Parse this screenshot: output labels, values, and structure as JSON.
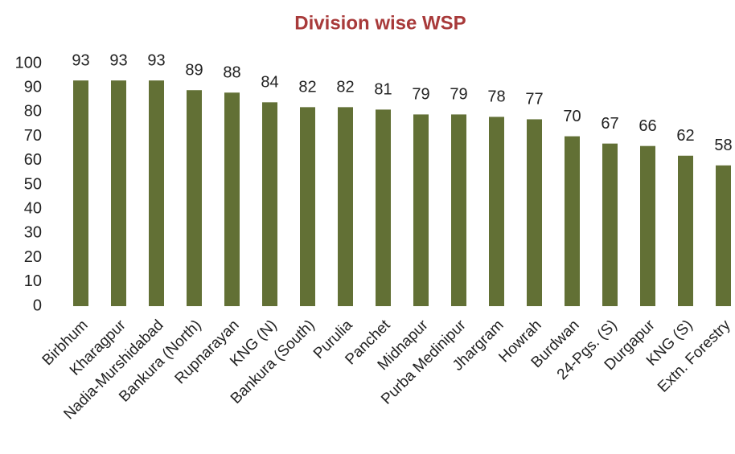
{
  "chart_data": {
    "type": "bar",
    "title": "Division wise WSP",
    "categories": [
      "Birbhum",
      "Kharagpur",
      "Nadia-Murshidabad",
      "Bankura (North)",
      "Rupnarayan",
      "KNG (N)",
      "Bankura (South)",
      "Purulia",
      "Panchet",
      "Midnapur",
      "Purba Medinipur",
      "Jhargram",
      "Howrah",
      "Burdwan",
      "24-Pgs. (S)",
      "Durgapur",
      "KNG (S)",
      "Extn. Forestry"
    ],
    "values": [
      93,
      93,
      93,
      89,
      88,
      84,
      82,
      82,
      81,
      79,
      79,
      78,
      77,
      70,
      67,
      66,
      62,
      58
    ],
    "color": "#627035",
    "ylim": [
      0,
      100
    ],
    "yticks": [
      0,
      10,
      20,
      30,
      40,
      50,
      60,
      70,
      80,
      90,
      100
    ],
    "grid": false
  }
}
